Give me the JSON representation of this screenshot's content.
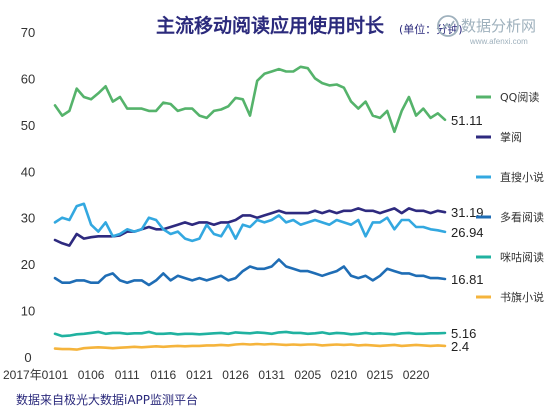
{
  "title": "主流移动阅读应用使用时长",
  "unit": "(单位：分钟)",
  "source": "数据来自极光大数据iAPP监测平台",
  "watermark": {
    "text": "数据分析网",
    "url": "www.afenxi.com",
    "icon": "watermark-logo-icon"
  },
  "chart_data": {
    "type": "line",
    "title": "主流移动阅读应用使用时长",
    "ylabel": "(单位：分钟)",
    "xlabel": "",
    "ylim": [
      0,
      70
    ],
    "yticks": [
      "0",
      "10",
      "20",
      "30",
      "40",
      "50",
      "60",
      "70"
    ],
    "grid": false,
    "legend_position": "right",
    "x_year_label": "2017年",
    "x": [
      "0101",
      "0102",
      "0103",
      "0104",
      "0105",
      "0106",
      "0107",
      "0108",
      "0109",
      "0110",
      "0111",
      "0112",
      "0113",
      "0114",
      "0115",
      "0116",
      "0117",
      "0118",
      "0119",
      "0120",
      "0121",
      "0122",
      "0123",
      "0124",
      "0125",
      "0126",
      "0127",
      "0128",
      "0129",
      "0130",
      "0131",
      "0201",
      "0202",
      "0203",
      "0204",
      "0205",
      "0206",
      "0207",
      "0208",
      "0209",
      "0210",
      "0211",
      "0212",
      "0213",
      "0214",
      "0215",
      "0216",
      "0217",
      "0218",
      "0219",
      "0220",
      "0221",
      "0222",
      "0223",
      "0224"
    ],
    "xtick_labels": [
      "0101",
      "0106",
      "0111",
      "0116",
      "0121",
      "0126",
      "0131",
      "0205",
      "0210",
      "0215",
      "0220"
    ],
    "series": [
      {
        "name": "QQ阅读",
        "color": "#55b36b",
        "end_label": "51.11",
        "values": [
          54.2,
          52.0,
          53.0,
          57.8,
          56.0,
          55.5,
          56.8,
          58.3,
          55.0,
          56.0,
          53.5,
          53.5,
          53.5,
          53.0,
          53.0,
          54.8,
          54.5,
          53.0,
          53.5,
          53.5,
          52.0,
          51.5,
          53.0,
          53.3,
          54.0,
          55.8,
          55.5,
          52.0,
          59.5,
          61.0,
          61.5,
          62.0,
          61.5,
          61.5,
          62.5,
          62.2,
          60.0,
          59.0,
          58.5,
          58.7,
          58.0,
          55.0,
          53.5,
          55.0,
          52.0,
          51.5,
          53.0,
          48.5,
          53.0,
          56.0,
          52.0,
          53.5,
          51.5,
          52.5,
          51.1
        ]
      },
      {
        "name": "掌阅",
        "color": "#2e2a7f",
        "end_label": "31.19",
        "values": [
          25.2,
          24.5,
          24.0,
          26.5,
          25.5,
          25.8,
          26.0,
          26.0,
          26.0,
          26.2,
          27.0,
          27.0,
          27.5,
          28.0,
          27.5,
          27.5,
          28.0,
          28.5,
          29.0,
          28.5,
          29.0,
          29.0,
          28.5,
          29.0,
          29.0,
          29.5,
          30.5,
          30.5,
          30.0,
          30.5,
          31.0,
          31.5,
          31.0,
          31.0,
          31.0,
          31.0,
          31.5,
          31.0,
          31.5,
          31.0,
          31.5,
          31.5,
          32.0,
          31.5,
          31.5,
          31.0,
          31.5,
          32.0,
          31.0,
          32.0,
          31.5,
          31.5,
          31.0,
          31.5,
          31.19
        ]
      },
      {
        "name": "直搜小说",
        "color": "#33a8e0",
        "end_label": "26.94",
        "values": [
          29.0,
          30.0,
          29.5,
          32.5,
          33.0,
          28.5,
          27.0,
          29.0,
          26.0,
          26.5,
          27.5,
          27.0,
          27.5,
          30.0,
          29.5,
          27.5,
          26.5,
          27.0,
          25.5,
          25.0,
          25.5,
          28.5,
          26.5,
          26.0,
          28.5,
          25.5,
          28.5,
          28.0,
          29.5,
          29.0,
          29.5,
          30.5,
          29.0,
          29.5,
          28.5,
          29.0,
          29.5,
          29.0,
          28.5,
          29.5,
          29.0,
          28.5,
          29.5,
          26.0,
          29.0,
          29.0,
          30.0,
          27.5,
          29.5,
          29.5,
          28.0,
          28.0,
          27.5,
          27.3,
          26.94
        ]
      },
      {
        "name": "多看阅读",
        "color": "#1f6db5",
        "end_label": "16.81",
        "values": [
          17.0,
          16.0,
          16.0,
          16.5,
          16.5,
          16.0,
          16.0,
          17.5,
          18.0,
          16.5,
          16.0,
          16.5,
          16.5,
          15.5,
          16.5,
          18.0,
          16.5,
          17.5,
          17.0,
          16.5,
          17.0,
          16.5,
          17.0,
          17.5,
          16.5,
          17.0,
          18.5,
          19.5,
          19.0,
          19.0,
          19.5,
          21.0,
          19.5,
          19.0,
          18.5,
          18.5,
          18.0,
          17.5,
          18.0,
          18.5,
          19.5,
          17.5,
          17.0,
          17.5,
          16.5,
          17.5,
          19.0,
          18.5,
          18.0,
          18.0,
          17.5,
          17.5,
          17.0,
          17.0,
          16.81
        ]
      },
      {
        "name": "咪咕阅读",
        "color": "#20b2a0",
        "end_label": "5.16",
        "values": [
          5.0,
          4.5,
          4.6,
          4.9,
          5.0,
          5.2,
          5.4,
          5.0,
          5.2,
          5.2,
          5.0,
          5.1,
          5.1,
          5.4,
          5.0,
          5.0,
          5.1,
          4.9,
          5.0,
          5.0,
          4.9,
          5.0,
          5.1,
          5.2,
          5.0,
          5.3,
          5.2,
          5.1,
          5.3,
          5.2,
          5.0,
          5.3,
          5.4,
          5.2,
          5.2,
          5.0,
          5.1,
          5.3,
          5.0,
          5.2,
          5.1,
          4.9,
          5.0,
          5.2,
          5.0,
          5.1,
          5.0,
          4.9,
          5.1,
          5.2,
          5.0,
          5.0,
          5.1,
          5.1,
          5.16
        ]
      },
      {
        "name": "书旗小说",
        "color": "#f5b43c",
        "end_label": "2.4",
        "values": [
          1.8,
          1.7,
          1.7,
          1.6,
          1.9,
          2.0,
          2.1,
          2.0,
          1.9,
          2.0,
          2.1,
          2.2,
          2.1,
          2.2,
          2.3,
          2.2,
          2.3,
          2.4,
          2.3,
          2.4,
          2.4,
          2.5,
          2.5,
          2.6,
          2.5,
          2.7,
          2.8,
          2.7,
          2.8,
          2.7,
          2.8,
          2.7,
          2.6,
          2.7,
          2.6,
          2.7,
          2.7,
          2.5,
          2.6,
          2.7,
          2.6,
          2.7,
          2.5,
          2.6,
          2.5,
          2.4,
          2.5,
          2.6,
          2.4,
          2.5,
          2.6,
          2.5,
          2.4,
          2.5,
          2.4
        ]
      }
    ]
  }
}
